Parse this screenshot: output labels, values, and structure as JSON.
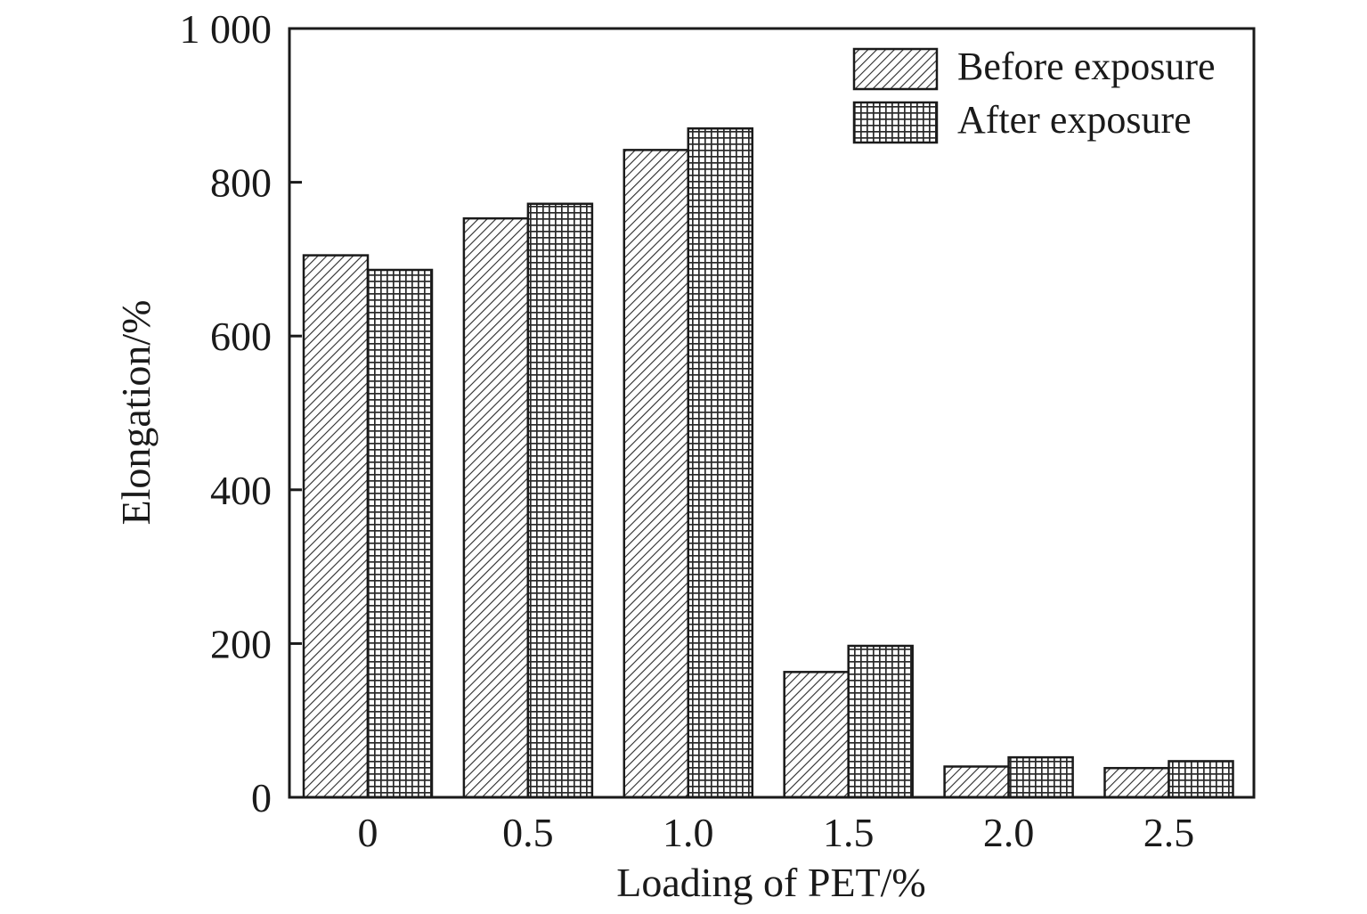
{
  "chart_data": {
    "type": "bar",
    "categories": [
      "0",
      "0.5",
      "1.0",
      "1.5",
      "2.0",
      "2.5"
    ],
    "series": [
      {
        "name": "Before exposure",
        "values": [
          705,
          753,
          842,
          163,
          40,
          38
        ],
        "pattern": "diagonal-hatch"
      },
      {
        "name": "After exposure",
        "values": [
          686,
          772,
          870,
          197,
          52,
          47
        ],
        "pattern": "crosshatch-grid"
      }
    ],
    "title": "",
    "xlabel": "Loading of PET/%",
    "ylabel": "Elongation/%",
    "ylim": [
      0,
      1000
    ],
    "yticks": [
      {
        "value": 0,
        "label": "0"
      },
      {
        "value": 200,
        "label": "200"
      },
      {
        "value": 400,
        "label": "400"
      },
      {
        "value": 600,
        "label": "600"
      },
      {
        "value": 800,
        "label": "800"
      },
      {
        "value": 1000,
        "label": "1 000"
      }
    ],
    "grid": false,
    "legend_position": "top-right",
    "colors": {
      "ink": "#1a1a1a",
      "bar_fill": "#ffffff"
    }
  }
}
